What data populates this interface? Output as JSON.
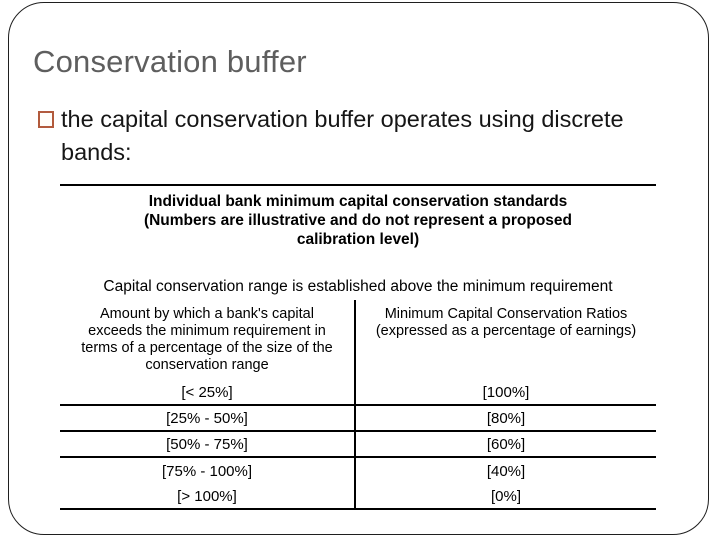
{
  "slide": {
    "title": "Conservation buffer",
    "bullet_text": "the capital conservation buffer operates using discrete bands:"
  },
  "table": {
    "heading": "Individual bank minimum capital conservation standards",
    "heading_note": "(Numbers are illustrative and do not represent a proposed calibration level)",
    "note": "Capital conservation range is established above the minimum requirement",
    "col_left_header": "Amount by which a bank's capital exceeds the minimum requirement in terms of a percentage of the size of the conservation range",
    "col_right_header": "Minimum Capital Conservation Ratios (expressed as a percentage of earnings)",
    "rows": [
      {
        "range": "[< 25%]",
        "ratio": "[100%]"
      },
      {
        "range": "[25% - 50%]",
        "ratio": "[80%]"
      },
      {
        "range": "[50% - 75%]",
        "ratio": "[60%]"
      },
      {
        "range": "[75% - 100%]",
        "ratio": "[40%]"
      },
      {
        "range": "[> 100%]",
        "ratio": "[0%]"
      }
    ]
  },
  "colors": {
    "title_gray": "#5e5e5e",
    "bullet_square": "#b25a3c",
    "body_text": "#161616",
    "table_ink": "#000000"
  }
}
